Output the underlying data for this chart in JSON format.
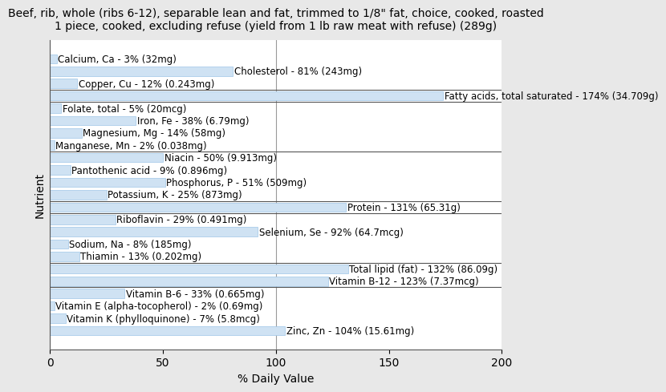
{
  "title": "Beef, rib, whole (ribs 6-12), separable lean and fat, trimmed to 1/8\" fat, choice, cooked, roasted\n1 piece, cooked, excluding refuse (yield from 1 lb raw meat with refuse) (289g)",
  "xlabel": "% Daily Value",
  "ylabel": "Nutrient",
  "xlim": [
    0,
    200
  ],
  "xticks": [
    0,
    50,
    100,
    150,
    200
  ],
  "bar_color": "#cfe2f3",
  "bar_edge_color": "#9fc5e8",
  "background_color": "#e8e8e8",
  "plot_bg_color": "#ffffff",
  "nutrients": [
    {
      "name": "Calcium, Ca - 3% (32mg)",
      "value": 3
    },
    {
      "name": "Cholesterol - 81% (243mg)",
      "value": 81
    },
    {
      "name": "Copper, Cu - 12% (0.243mg)",
      "value": 12
    },
    {
      "name": "Fatty acids, total saturated - 174% (34.709g)",
      "value": 174
    },
    {
      "name": "Folate, total - 5% (20mcg)",
      "value": 5
    },
    {
      "name": "Iron, Fe - 38% (6.79mg)",
      "value": 38
    },
    {
      "name": "Magnesium, Mg - 14% (58mg)",
      "value": 14
    },
    {
      "name": "Manganese, Mn - 2% (0.038mg)",
      "value": 2
    },
    {
      "name": "Niacin - 50% (9.913mg)",
      "value": 50
    },
    {
      "name": "Pantothenic acid - 9% (0.896mg)",
      "value": 9
    },
    {
      "name": "Phosphorus, P - 51% (509mg)",
      "value": 51
    },
    {
      "name": "Potassium, K - 25% (873mg)",
      "value": 25
    },
    {
      "name": "Protein - 131% (65.31g)",
      "value": 131
    },
    {
      "name": "Riboflavin - 29% (0.491mg)",
      "value": 29
    },
    {
      "name": "Selenium, Se - 92% (64.7mcg)",
      "value": 92
    },
    {
      "name": "Sodium, Na - 8% (185mg)",
      "value": 8
    },
    {
      "name": "Thiamin - 13% (0.202mg)",
      "value": 13
    },
    {
      "name": "Total lipid (fat) - 132% (86.09g)",
      "value": 132
    },
    {
      "name": "Vitamin B-12 - 123% (7.37mcg)",
      "value": 123
    },
    {
      "name": "Vitamin B-6 - 33% (0.665mg)",
      "value": 33
    },
    {
      "name": "Vitamin E (alpha-tocopherol) - 2% (0.69mg)",
      "value": 2
    },
    {
      "name": "Vitamin K (phylloquinone) - 7% (5.8mcg)",
      "value": 7
    },
    {
      "name": "Zinc, Zn - 104% (15.61mg)",
      "value": 104
    }
  ],
  "group_separators_after": [
    3,
    4,
    8,
    12,
    13,
    17,
    19
  ],
  "title_fontsize": 10,
  "axis_label_fontsize": 10,
  "tick_fontsize": 10,
  "bar_label_fontsize": 8.5
}
